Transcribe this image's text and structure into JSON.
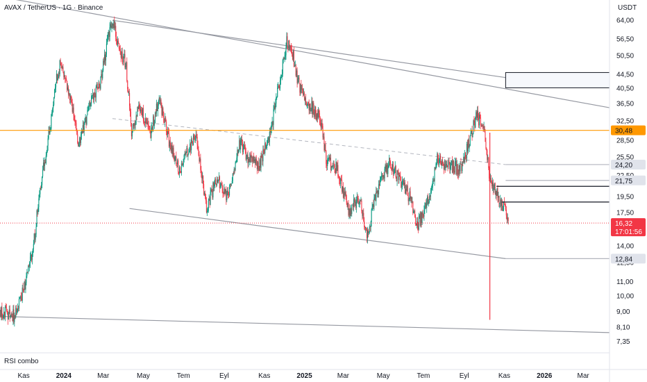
{
  "header": {
    "symbol_title": "AVAX / TetherUS · 1G · Binance",
    "currency": "USDT"
  },
  "indicator": {
    "label": "RSI combo"
  },
  "colors": {
    "up": "#089981",
    "down": "#f23645",
    "trendline": "#9598a1",
    "orange_level": "#ff9800",
    "current_price": "#f23645",
    "badge_gray": "#e0e3eb",
    "grid_separator": "#e0e3eb"
  },
  "chart_data": {
    "type": "candlestick",
    "title": "AVAX / TetherUS · 1G · Binance",
    "y_scale": "log",
    "ylim": [
      7.0,
      72.0
    ],
    "y_unit": "USDT",
    "y_ticks": [
      "64,00",
      "56,50",
      "50,50",
      "44,50",
      "40,50",
      "36,50",
      "32,50",
      "28,50",
      "25,50",
      "22,50",
      "19,50",
      "17,50",
      "14,00",
      "12,50",
      "11,00",
      "10,00",
      "9,00",
      "8,10",
      "7,35"
    ],
    "y_tick_values": [
      64.0,
      56.5,
      50.5,
      44.5,
      40.5,
      36.5,
      32.5,
      28.5,
      25.5,
      22.5,
      19.5,
      17.5,
      14.0,
      12.5,
      11.0,
      10.0,
      9.0,
      8.1,
      7.35
    ],
    "x_ticks": [
      {
        "label": "Kas",
        "date": "2023-11-01",
        "bold": false
      },
      {
        "label": "2024",
        "date": "2024-01-01",
        "bold": true
      },
      {
        "label": "Mar",
        "date": "2024-03-01",
        "bold": false
      },
      {
        "label": "May",
        "date": "2024-05-01",
        "bold": false
      },
      {
        "label": "Tem",
        "date": "2024-07-01",
        "bold": false
      },
      {
        "label": "Eyl",
        "date": "2024-09-01",
        "bold": false
      },
      {
        "label": "Kas",
        "date": "2024-11-01",
        "bold": false
      },
      {
        "label": "2025",
        "date": "2025-01-01",
        "bold": true
      },
      {
        "label": "Mar",
        "date": "2025-03-01",
        "bold": false
      },
      {
        "label": "May",
        "date": "2025-05-01",
        "bold": false
      },
      {
        "label": "Tem",
        "date": "2025-07-01",
        "bold": false
      },
      {
        "label": "Eyl",
        "date": "2025-09-01",
        "bold": false
      },
      {
        "label": "Kas",
        "date": "2025-11-01",
        "bold": false
      },
      {
        "label": "2026",
        "date": "2026-01-01",
        "bold": true
      },
      {
        "label": "Mar",
        "date": "2026-03-01",
        "bold": false
      }
    ],
    "x_range": [
      "2023-09-26",
      "2026-04-10"
    ],
    "price_path": [
      [
        "2023-09-26",
        9.0
      ],
      [
        "2023-10-10",
        8.9
      ],
      [
        "2023-10-19",
        8.7
      ],
      [
        "2023-11-01",
        10.5
      ],
      [
        "2023-11-15",
        13.5
      ],
      [
        "2023-11-25",
        20.0
      ],
      [
        "2023-12-10",
        30.0
      ],
      [
        "2023-12-20",
        42.0
      ],
      [
        "2023-12-28",
        49.0
      ],
      [
        "2024-01-10",
        38.0
      ],
      [
        "2024-01-24",
        28.0
      ],
      [
        "2024-02-10",
        36.0
      ],
      [
        "2024-02-25",
        42.0
      ],
      [
        "2024-03-08",
        56.0
      ],
      [
        "2024-03-15",
        64.0
      ],
      [
        "2024-03-22",
        56.0
      ],
      [
        "2024-04-05",
        47.0
      ],
      [
        "2024-04-13",
        30.0
      ],
      [
        "2024-04-25",
        36.0
      ],
      [
        "2024-05-12",
        30.0
      ],
      [
        "2024-05-25",
        38.0
      ],
      [
        "2024-06-10",
        28.0
      ],
      [
        "2024-06-25",
        23.5
      ],
      [
        "2024-07-10",
        27.0
      ],
      [
        "2024-07-20",
        30.0
      ],
      [
        "2024-08-05",
        18.0
      ],
      [
        "2024-08-20",
        22.0
      ],
      [
        "2024-09-06",
        19.5
      ],
      [
        "2024-09-25",
        28.0
      ],
      [
        "2024-10-10",
        25.0
      ],
      [
        "2024-10-25",
        24.0
      ],
      [
        "2024-11-10",
        30.0
      ],
      [
        "2024-11-22",
        40.0
      ],
      [
        "2024-12-05",
        55.0
      ],
      [
        "2024-12-15",
        50.0
      ],
      [
        "2024-12-25",
        40.0
      ],
      [
        "2025-01-10",
        36.0
      ],
      [
        "2025-01-25",
        33.0
      ],
      [
        "2025-02-03",
        25.0
      ],
      [
        "2025-02-20",
        23.5
      ],
      [
        "2025-03-10",
        17.5
      ],
      [
        "2025-03-25",
        19.5
      ],
      [
        "2025-04-07",
        15.0
      ],
      [
        "2025-04-20",
        20.0
      ],
      [
        "2025-05-10",
        24.5
      ],
      [
        "2025-05-25",
        22.0
      ],
      [
        "2025-06-10",
        19.5
      ],
      [
        "2025-06-22",
        16.0
      ],
      [
        "2025-07-10",
        19.5
      ],
      [
        "2025-07-22",
        25.0
      ],
      [
        "2025-08-10",
        24.0
      ],
      [
        "2025-08-28",
        23.5
      ],
      [
        "2025-09-10",
        29.0
      ],
      [
        "2025-09-20",
        34.0
      ],
      [
        "2025-10-01",
        30.0
      ],
      [
        "2025-10-10",
        22.0
      ],
      [
        "2025-10-20",
        20.0
      ],
      [
        "2025-11-01",
        18.0
      ],
      [
        "2025-11-08",
        15.8
      ]
    ],
    "crash_wick": {
      "date": "2025-10-10",
      "low": 8.5
    },
    "current_price": {
      "value": "16,32",
      "countdown": "17:01:56"
    },
    "horizontal_levels": [
      {
        "label": "30,48",
        "value": 30.48,
        "style": "orange"
      },
      {
        "label": "24,20",
        "value": 24.2,
        "style": "gray"
      },
      {
        "label": "21,75",
        "value": 21.75,
        "style": "gray"
      },
      {
        "label": "12,84",
        "value": 12.84,
        "style": "gray"
      }
    ],
    "trendlines": [
      {
        "from": [
          "2023-09-26",
          75.0
        ],
        "to": [
          "2026-04-10",
          35.5
        ]
      },
      {
        "from": [
          "2023-09-26",
          8.7
        ],
        "to": [
          "2026-04-10",
          7.8
        ]
      },
      {
        "from": [
          "2024-03-15",
          64.0
        ],
        "to": [
          "2025-11-03",
          43.5
        ]
      },
      {
        "from": [
          "2024-04-10",
          18.0
        ],
        "to": [
          "2025-11-03",
          12.84
        ]
      }
    ],
    "dashed_line": {
      "from": [
        "2024-03-15",
        33.0
      ],
      "to": [
        "2025-11-03",
        24.2
      ]
    },
    "black_lines": [
      {
        "from": [
          "2025-10-20",
          20.9
        ],
        "to": [
          "2026-01-01",
          20.9
        ]
      },
      {
        "from": [
          "2025-10-28",
          18.8
        ],
        "to": [
          "2026-01-01",
          18.8
        ]
      }
    ],
    "box": {
      "from": [
        "2025-11-03",
        45.0
      ],
      "to": [
        "2026-04-10",
        40.6
      ]
    }
  }
}
